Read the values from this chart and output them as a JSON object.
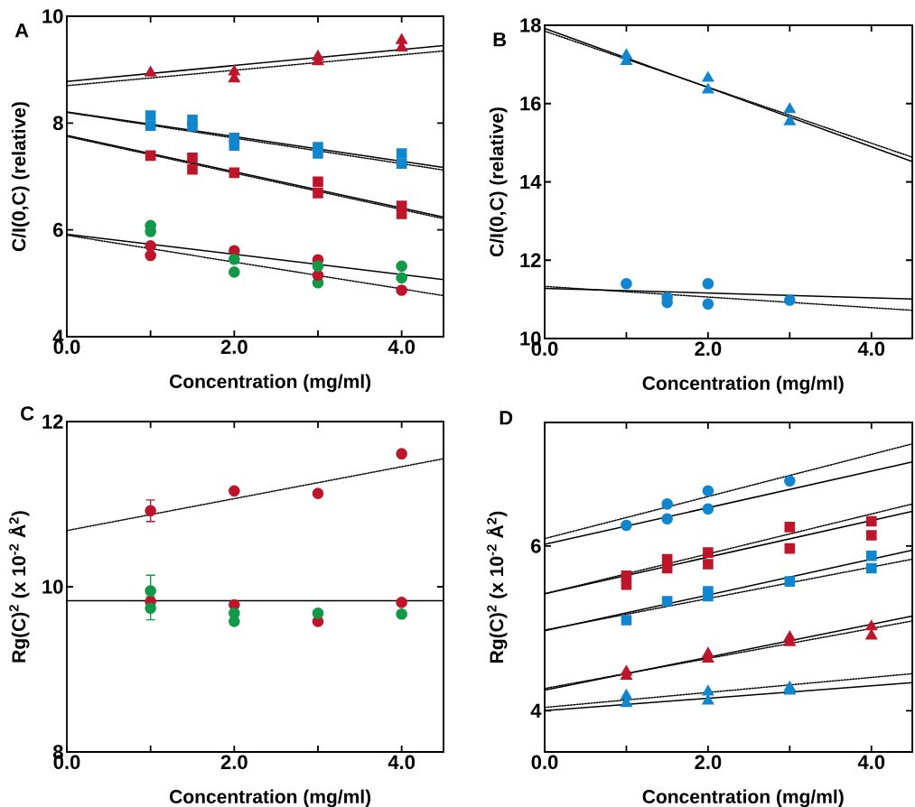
{
  "chart_data": [
    {
      "type": "scatter",
      "title": "A",
      "xlabel": "Concentration (mg/ml)",
      "ylabel": "C/I(0,C) (relative)",
      "xlim": [
        0,
        4.5
      ],
      "ylim": [
        4,
        10
      ],
      "xticks": [
        {
          "value": 0,
          "label": "0.0"
        },
        {
          "value": 1,
          "label": null
        },
        {
          "value": 2,
          "label": "2.0"
        },
        {
          "value": 3,
          "label": null
        },
        {
          "value": 4,
          "label": "4.0"
        }
      ],
      "yticks": [
        4,
        6,
        8,
        10
      ],
      "series": [
        {
          "type": "line",
          "x": [
            0,
            4.5
          ],
          "values": [
            8.78,
            9.45
          ],
          "color": "#000000",
          "line_style": "solid",
          "marker": "none"
        },
        {
          "type": "line",
          "x": [
            0,
            4.5
          ],
          "values": [
            8.7,
            9.35
          ],
          "color": "#000000",
          "line_style": "dotted",
          "marker": "none"
        },
        {
          "type": "line",
          "x": [
            0,
            4.5
          ],
          "values": [
            8.21,
            7.17
          ],
          "color": "#000000",
          "line_style": "solid",
          "marker": "none"
        },
        {
          "type": "line",
          "x": [
            0,
            4.5
          ],
          "values": [
            8.2,
            7.12
          ],
          "color": "#000000",
          "line_style": "dotted",
          "marker": "none"
        },
        {
          "type": "line",
          "x": [
            0,
            4.5
          ],
          "values": [
            7.77,
            6.24
          ],
          "color": "#000000",
          "line_style": "solid",
          "marker": "none"
        },
        {
          "type": "line",
          "x": [
            0,
            4.5
          ],
          "values": [
            7.75,
            6.21
          ],
          "color": "#000000",
          "line_style": "dotted",
          "marker": "none"
        },
        {
          "type": "line",
          "x": [
            0,
            4.5
          ],
          "values": [
            5.92,
            5.07
          ],
          "color": "#000000",
          "line_style": "solid",
          "marker": "none"
        },
        {
          "type": "line",
          "x": [
            0,
            4.5
          ],
          "values": [
            5.9,
            4.77
          ],
          "color": "#000000",
          "line_style": "dotted",
          "marker": "none"
        },
        {
          "x": [
            1,
            2,
            3,
            4
          ],
          "values": [
            8.94,
            8.96,
            9.24,
            9.55
          ],
          "color": "#c0142b",
          "marker": "triangle"
        },
        {
          "x": [
            2,
            3,
            4
          ],
          "values": [
            8.83,
            9.15,
            9.41
          ],
          "color": "#c0142b",
          "marker": "triangle"
        },
        {
          "x": [
            1,
            1.5,
            2,
            3,
            4
          ],
          "values": [
            8.14,
            8.06,
            7.72,
            7.55,
            7.43
          ],
          "color": "#0f86d0",
          "marker": "square"
        },
        {
          "x": [
            1,
            1.5,
            2,
            3,
            4
          ],
          "values": [
            7.95,
            7.94,
            7.58,
            7.43,
            7.24
          ],
          "color": "#0f86d0",
          "marker": "square"
        },
        {
          "x": [
            1,
            1.5,
            2,
            3,
            4
          ],
          "values": [
            7.39,
            7.35,
            7.07,
            6.9,
            6.45
          ],
          "color": "#c0142b",
          "marker": "square"
        },
        {
          "x": [
            1.5,
            3,
            4
          ],
          "values": [
            7.13,
            6.69,
            6.3
          ],
          "color": "#c0142b",
          "marker": "square"
        },
        {
          "x": [
            1,
            2,
            3,
            4
          ],
          "values": [
            5.97,
            5.21,
            5.01,
            5.1
          ],
          "color": "#0f9a48",
          "marker": "circle"
        },
        {
          "x": [
            1,
            2,
            3
          ],
          "values": [
            5.7,
            5.61,
            5.44
          ],
          "color": "#c0142b",
          "marker": "circle"
        },
        {
          "x": [
            1,
            3,
            4
          ],
          "values": [
            5.52,
            5.15,
            4.87
          ],
          "color": "#c0142b",
          "marker": "circle"
        },
        {
          "x": [
            1,
            2,
            3,
            4
          ],
          "values": [
            6.08,
            5.45,
            5.32,
            5.32
          ],
          "color": "#0f9a48",
          "marker": "circle"
        }
      ]
    },
    {
      "type": "scatter",
      "title": "B",
      "xlabel": "Concentration (mg/ml)",
      "ylabel": "C/I(0,C) (relative)",
      "xlim": [
        0,
        4.5
      ],
      "ylim": [
        10,
        18
      ],
      "xticks": [
        {
          "value": 0,
          "label": "0.0"
        },
        {
          "value": 1,
          "label": null
        },
        {
          "value": 2,
          "label": "2.0"
        },
        {
          "value": 3,
          "label": null
        },
        {
          "value": 4,
          "label": "4.0"
        }
      ],
      "yticks": [
        10,
        12,
        14,
        16,
        18
      ],
      "series": [
        {
          "type": "line",
          "x": [
            0,
            4.5
          ],
          "values": [
            17.92,
            14.52
          ],
          "color": "#000000",
          "line_style": "solid",
          "marker": "none"
        },
        {
          "type": "line",
          "x": [
            0,
            4.5
          ],
          "values": [
            17.85,
            14.63
          ],
          "color": "#000000",
          "line_style": "dotted",
          "marker": "none"
        },
        {
          "type": "line",
          "x": [
            0,
            4.5
          ],
          "values": [
            11.28,
            11.01
          ],
          "color": "#000000",
          "line_style": "solid",
          "marker": "none"
        },
        {
          "type": "line",
          "x": [
            0,
            4.5
          ],
          "values": [
            11.33,
            10.72
          ],
          "color": "#000000",
          "line_style": "dotted",
          "marker": "none"
        },
        {
          "x": [
            1,
            2,
            3
          ],
          "values": [
            17.23,
            16.65,
            15.54
          ],
          "color": "#0f86d0",
          "marker": "triangle"
        },
        {
          "x": [
            1,
            2,
            3
          ],
          "values": [
            17.08,
            16.35,
            15.85
          ],
          "color": "#0f86d0",
          "marker": "triangle"
        },
        {
          "x": [
            1,
            1.5,
            2
          ],
          "values": [
            11.4,
            10.92,
            11.4
          ],
          "color": "#0f86d0",
          "marker": "circle"
        },
        {
          "x": [
            1.5,
            2,
            3
          ],
          "values": [
            11.05,
            10.88,
            10.98
          ],
          "color": "#0f86d0",
          "marker": "circle"
        }
      ]
    },
    {
      "type": "scatter",
      "title": "C",
      "xlabel": "Concentration (mg/ml)",
      "ylabel": "Rg(C)$^{2}$ (x 10$^{-2}$ Å$^{2}$)",
      "xlim": [
        0,
        4.5
      ],
      "ylim": [
        8,
        12
      ],
      "xticks": [
        {
          "value": 0,
          "label": "0.0"
        },
        {
          "value": 1,
          "label": null
        },
        {
          "value": 2,
          "label": "2.0"
        },
        {
          "value": 3,
          "label": null
        },
        {
          "value": 4,
          "label": "4.0"
        }
      ],
      "yticks": [
        8,
        10,
        12
      ],
      "series": [
        {
          "type": "line",
          "x": [
            0,
            4.5
          ],
          "values": [
            10.68,
            11.55
          ],
          "color": "#000000",
          "line_style": "dotted",
          "marker": "none"
        },
        {
          "type": "line",
          "x": [
            0,
            4.5
          ],
          "values": [
            9.83,
            9.83
          ],
          "color": "#000000",
          "line_style": "solid",
          "marker": "none"
        },
        {
          "x": [
            1,
            2,
            3,
            4
          ],
          "values": [
            10.92,
            11.16,
            11.13,
            11.61
          ],
          "errors": [
            0.13,
            null,
            null,
            null
          ],
          "color": "#c0142b",
          "marker": "circle"
        },
        {
          "x": [
            1,
            2,
            3,
            4
          ],
          "values": [
            9.82,
            9.78,
            9.58,
            9.81
          ],
          "color": "#c0142b",
          "marker": "circle"
        },
        {
          "x": [
            1,
            2
          ],
          "values": [
            9.95,
            9.58
          ],
          "errors": [
            0.19,
            null
          ],
          "color": "#0f9a48",
          "marker": "circle"
        },
        {
          "x": [
            1,
            2,
            3,
            4
          ],
          "values": [
            9.74,
            9.68,
            9.68,
            9.67
          ],
          "errors": [
            0.14,
            null,
            null,
            null
          ],
          "color": "#0f9a48",
          "marker": "circle"
        }
      ]
    },
    {
      "type": "scatter",
      "title": "D",
      "xlabel": "Concentration (mg/ml)",
      "ylabel": "Rg(C)$^{2}$ (x 10$^{-2}$ Å$^{2}$)",
      "xlim": [
        0,
        4.5
      ],
      "ylim": [
        3.5,
        7.5
      ],
      "xticks": [
        {
          "value": 0,
          "label": "0.0"
        },
        {
          "value": 1,
          "label": null
        },
        {
          "value": 2,
          "label": "2.0"
        },
        {
          "value": 3,
          "label": null
        },
        {
          "value": 4,
          "label": "4.0"
        }
      ],
      "yticks": [
        4,
        6
      ],
      "series": [
        {
          "type": "line",
          "x": [
            0,
            4.5
          ],
          "values": [
            6.02,
            7.02
          ],
          "color": "#000000",
          "line_style": "solid",
          "marker": "none"
        },
        {
          "type": "line",
          "x": [
            0,
            4.5
          ],
          "values": [
            6.09,
            7.24
          ],
          "color": "#000000",
          "line_style": "dotted",
          "marker": "none"
        },
        {
          "type": "line",
          "x": [
            0,
            4.5
          ],
          "values": [
            5.42,
            6.42
          ],
          "color": "#000000",
          "line_style": "solid",
          "marker": "none"
        },
        {
          "type": "line",
          "x": [
            0,
            4.5
          ],
          "values": [
            5.42,
            6.51
          ],
          "color": "#000000",
          "line_style": "dotted",
          "marker": "none"
        },
        {
          "type": "line",
          "x": [
            0,
            4.5
          ],
          "values": [
            4.97,
            5.95
          ],
          "color": "#000000",
          "line_style": "solid",
          "marker": "none"
        },
        {
          "type": "line",
          "x": [
            0,
            4.5
          ],
          "values": [
            4.98,
            5.84
          ],
          "color": "#000000",
          "line_style": "dotted",
          "marker": "none"
        },
        {
          "type": "line",
          "x": [
            0,
            4.5
          ],
          "values": [
            4.25,
            5.15
          ],
          "color": "#000000",
          "line_style": "solid",
          "marker": "none"
        },
        {
          "type": "line",
          "x": [
            0,
            4.5
          ],
          "values": [
            4.27,
            5.09
          ],
          "color": "#000000",
          "line_style": "dotted",
          "marker": "none"
        },
        {
          "type": "line",
          "x": [
            0,
            4.5
          ],
          "values": [
            4.0,
            4.34
          ],
          "color": "#000000",
          "line_style": "solid",
          "marker": "none"
        },
        {
          "type": "line",
          "x": [
            0,
            4.5
          ],
          "values": [
            4.04,
            4.45
          ],
          "color": "#000000",
          "line_style": "dotted",
          "marker": "none"
        },
        {
          "x": [
            1.5,
            2,
            3
          ],
          "values": [
            6.51,
            6.67,
            6.79
          ],
          "color": "#0f86d0",
          "marker": "circle"
        },
        {
          "x": [
            1,
            1.5,
            2
          ],
          "values": [
            6.25,
            6.33,
            6.45
          ],
          "color": "#0f86d0",
          "marker": "circle"
        },
        {
          "x": [
            1,
            1.5,
            2,
            3,
            4
          ],
          "values": [
            5.64,
            5.73,
            5.92,
            5.97,
            6.13
          ],
          "color": "#c0142b",
          "marker": "square"
        },
        {
          "x": [
            1,
            1.5,
            2,
            3,
            4
          ],
          "values": [
            5.53,
            5.84,
            5.78,
            6.23,
            6.3
          ],
          "color": "#c0142b",
          "marker": "square"
        },
        {
          "x": [
            2,
            4
          ],
          "values": [
            5.45,
            5.73
          ],
          "color": "#0f86d0",
          "marker": "square"
        },
        {
          "x": [
            1,
            1.5,
            2,
            3,
            4
          ],
          "values": [
            5.1,
            5.33,
            5.39,
            5.57,
            5.88
          ],
          "color": "#0f86d0",
          "marker": "square"
        },
        {
          "x": [
            1,
            2,
            3,
            4
          ],
          "values": [
            4.42,
            4.63,
            4.83,
            4.91
          ],
          "color": "#c0142b",
          "marker": "triangle"
        },
        {
          "x": [
            1,
            2,
            3,
            4
          ],
          "values": [
            4.47,
            4.69,
            4.89,
            5.02
          ],
          "color": "#c0142b",
          "marker": "triangle"
        },
        {
          "x": [
            1,
            2,
            3
          ],
          "values": [
            4.18,
            4.12,
            4.24
          ],
          "color": "#0f86d0",
          "marker": "triangle"
        },
        {
          "x": [
            1,
            2,
            3
          ],
          "values": [
            4.09,
            4.23,
            4.28
          ],
          "color": "#0f86d0",
          "marker": "triangle"
        }
      ]
    }
  ]
}
